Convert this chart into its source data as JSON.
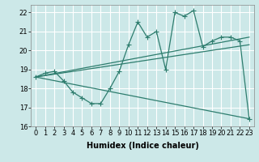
{
  "title": "",
  "xlabel": "Humidex (Indice chaleur)",
  "ylabel": "",
  "background_color": "#cce8e8",
  "grid_color": "#ffffff",
  "line_color": "#2e7d6e",
  "xlim": [
    -0.5,
    23.5
  ],
  "ylim": [
    16,
    22.4
  ],
  "xticks": [
    0,
    1,
    2,
    3,
    4,
    5,
    6,
    7,
    8,
    9,
    10,
    11,
    12,
    13,
    14,
    15,
    16,
    17,
    18,
    19,
    20,
    21,
    22,
    23
  ],
  "yticks": [
    16,
    17,
    18,
    19,
    20,
    21,
    22
  ],
  "series1": {
    "x": [
      0,
      1,
      2,
      3,
      4,
      5,
      6,
      7,
      8,
      9,
      10,
      11,
      12,
      13,
      14,
      15,
      16,
      17,
      18,
      19,
      20,
      21,
      22,
      23
    ],
    "y": [
      18.6,
      18.8,
      18.9,
      18.4,
      17.8,
      17.5,
      17.2,
      17.2,
      18.0,
      18.9,
      20.3,
      21.5,
      20.7,
      21.0,
      19.0,
      22.0,
      21.8,
      22.1,
      20.2,
      20.5,
      20.7,
      20.7,
      20.5,
      16.4
    ]
  },
  "linear1": {
    "x": [
      0,
      23
    ],
    "y": [
      18.6,
      20.7
    ]
  },
  "linear2": {
    "x": [
      0,
      23
    ],
    "y": [
      18.6,
      20.3
    ]
  },
  "series_bottom": {
    "x": [
      0,
      23
    ],
    "y": [
      18.6,
      16.4
    ]
  },
  "font_size_label": 7,
  "font_size_tick": 6,
  "marker_size": 3,
  "linewidth": 0.9
}
